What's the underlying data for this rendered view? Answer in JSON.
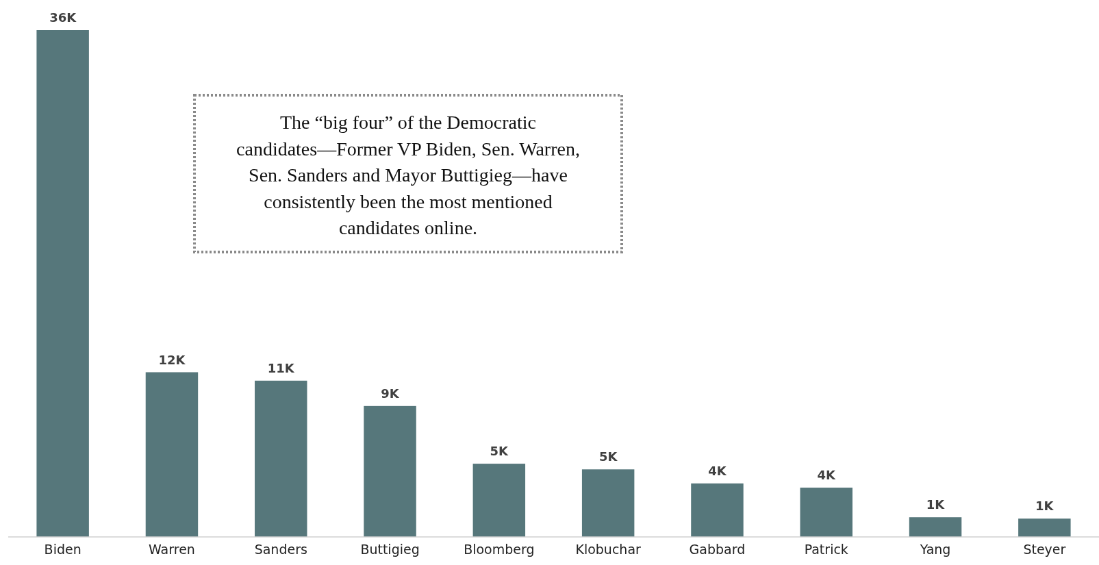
{
  "chart_data": {
    "type": "bar",
    "categories": [
      "Biden",
      "Warren",
      "Sanders",
      "Buttigieg",
      "Bloomberg",
      "Klobuchar",
      "Gabbard",
      "Patrick",
      "Yang",
      "Steyer"
    ],
    "values": [
      36,
      11.7,
      11.1,
      9.3,
      5.2,
      4.8,
      3.8,
      3.5,
      1.4,
      1.3
    ],
    "value_labels": [
      "36K",
      "12K",
      "11K",
      "9K",
      "5K",
      "5K",
      "4K",
      "4K",
      "1K",
      "1K"
    ],
    "color": "#56777b",
    "annotations": [
      "The “big four” of the Democratic candidates—Former VP Biden, Sen. Warren, Sen. Sanders and Mayor Buttigieg—have consistently been the most mentioned candidates online."
    ]
  }
}
